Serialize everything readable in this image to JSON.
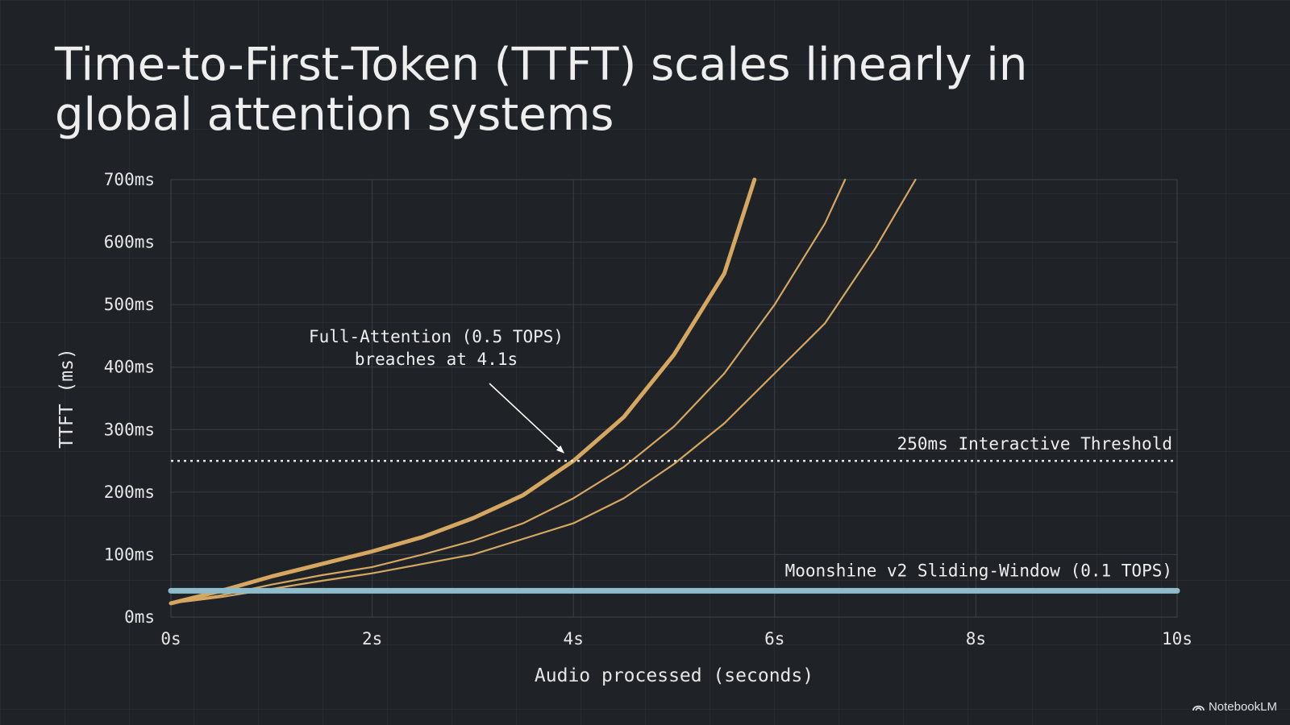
{
  "title": "Time-to-First-Token (TTFT) scales linearly in global attention systems",
  "brand": {
    "name": "NotebookLM",
    "icon": "notebooklm-logo-icon"
  },
  "colors": {
    "background": "#1f2328",
    "grid": "#3a3f46",
    "full_attention": "#d6a760",
    "moonshine": "#8fbccb",
    "threshold": "#e6e6e6"
  },
  "chart_data": {
    "type": "line",
    "xlabel": "Audio processed (seconds)",
    "ylabel": "TTFT (ms)",
    "xlim": [
      0,
      10
    ],
    "ylim": [
      0,
      700
    ],
    "x_ticks": [
      0,
      2,
      4,
      6,
      8,
      10
    ],
    "x_tick_labels": [
      "0s",
      "2s",
      "4s",
      "6s",
      "8s",
      "10s"
    ],
    "y_ticks": [
      0,
      100,
      200,
      300,
      400,
      500,
      600,
      700
    ],
    "y_tick_labels": [
      "0ms",
      "100ms",
      "200ms",
      "300ms",
      "400ms",
      "500ms",
      "600ms",
      "700ms"
    ],
    "grid": true,
    "series": [
      {
        "style": "bold",
        "x": [
          0,
          0.5,
          1,
          1.5,
          2,
          2.5,
          3,
          3.5,
          4,
          4.5,
          5,
          5.5,
          5.8
        ],
        "y": [
          22,
          42,
          65,
          85,
          105,
          128,
          158,
          195,
          250,
          320,
          420,
          550,
          700
        ]
      },
      {
        "style": "thin",
        "x": [
          0,
          0.5,
          1,
          1.5,
          2,
          2.5,
          3,
          3.5,
          4,
          4.5,
          5,
          5.5,
          6,
          6.5,
          6.7
        ],
        "y": [
          22,
          35,
          52,
          67,
          80,
          100,
          122,
          150,
          190,
          240,
          305,
          390,
          500,
          630,
          700
        ]
      },
      {
        "style": "thin",
        "x": [
          0,
          0.5,
          1,
          1.5,
          2,
          2.5,
          3,
          3.5,
          4,
          4.5,
          5,
          5.5,
          6,
          6.5,
          7,
          7.4
        ],
        "y": [
          22,
          32,
          45,
          58,
          70,
          85,
          100,
          125,
          150,
          190,
          245,
          310,
          390,
          470,
          590,
          700
        ]
      },
      {
        "name": "Moonshine v2 Sliding-Window (0.1 TOPS)",
        "style": "flat",
        "x": [
          0,
          10
        ],
        "y": [
          42,
          42
        ]
      }
    ],
    "threshold": {
      "value": 250,
      "label": "250ms Interactive Threshold"
    },
    "annotation": {
      "lines": [
        "Full-Attention (0.5 TOPS)",
        "breaches at 4.1s"
      ],
      "point": [
        4.0,
        250
      ]
    }
  }
}
